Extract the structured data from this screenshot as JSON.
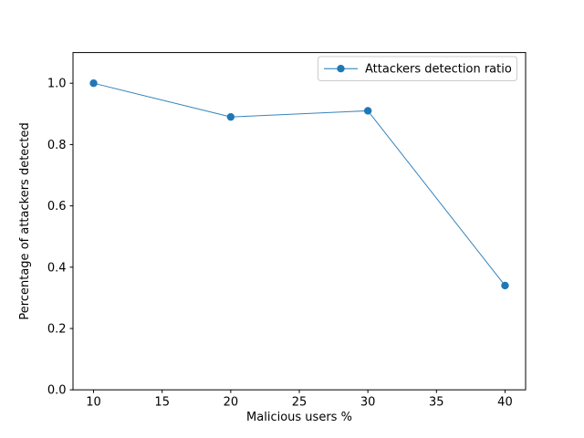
{
  "chart_data": {
    "type": "line",
    "title": "",
    "xlabel": "Malicious users %",
    "ylabel": "Percentage of attackers detected",
    "x": [
      10,
      20,
      30,
      40
    ],
    "series": [
      {
        "name": "Attackers detection ratio",
        "values": [
          1.0,
          0.89,
          0.91,
          0.34
        ],
        "color": "#1f77b4",
        "marker": "circle",
        "line_style": "solid"
      }
    ],
    "xlim": [
      8.5,
      41.5
    ],
    "ylim": [
      0,
      1.1
    ],
    "xticks": [
      10,
      15,
      20,
      25,
      30,
      35,
      40
    ],
    "yticks": [
      0.0,
      0.2,
      0.4,
      0.6,
      0.8,
      1.0
    ],
    "ytick_labels": [
      "0.0",
      "0.2",
      "0.4",
      "0.6",
      "0.8",
      "1.0"
    ],
    "grid": false,
    "legend_position": "upper right",
    "frame_color": "#000000",
    "background_color": "#ffffff",
    "legend_border_color": "#cccccc"
  }
}
